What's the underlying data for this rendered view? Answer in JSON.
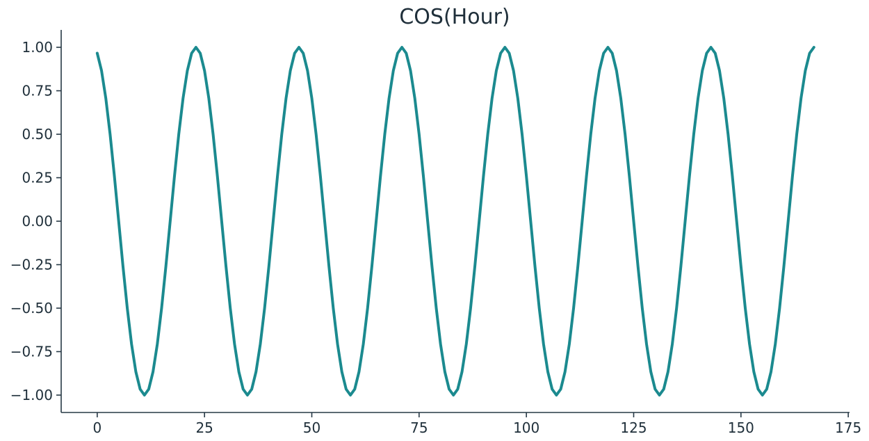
{
  "chart_data": {
    "type": "line",
    "title": "COS(Hour)",
    "xlabel": "",
    "ylabel": "",
    "xlim": [
      -8.4,
      175.3
    ],
    "ylim": [
      -1.1,
      1.1
    ],
    "x_ticks": [
      0,
      25,
      50,
      75,
      100,
      125,
      150,
      175
    ],
    "y_ticks": [
      1.0,
      0.75,
      0.5,
      0.25,
      0.0,
      -0.25,
      -0.5,
      -0.75,
      -1.0
    ],
    "x_tick_labels": [
      "0",
      "25",
      "50",
      "75",
      "100",
      "125",
      "150",
      "175"
    ],
    "y_tick_labels": [
      "1.00",
      "0.75",
      "0.50",
      "0.25",
      "0.00",
      "−0.25",
      "−0.50",
      "−0.75",
      "−1.00"
    ],
    "grid": false,
    "legend": "none",
    "series": [
      {
        "color": "#1b8a8f",
        "x": [
          0,
          1,
          2,
          3,
          4,
          5,
          6,
          7,
          8,
          9,
          10,
          11,
          12,
          13,
          14,
          15,
          16,
          17,
          18,
          19,
          20,
          21,
          22,
          23,
          24,
          25,
          26,
          27,
          28,
          29,
          30,
          31,
          32,
          33,
          34,
          35,
          36,
          37,
          38,
          39,
          40,
          41,
          42,
          43,
          44,
          45,
          46,
          47,
          48,
          49,
          50,
          51,
          52,
          53,
          54,
          55,
          56,
          57,
          58,
          59,
          60,
          61,
          62,
          63,
          64,
          65,
          66,
          67,
          68,
          69,
          70,
          71,
          72,
          73,
          74,
          75,
          76,
          77,
          78,
          79,
          80,
          81,
          82,
          83,
          84,
          85,
          86,
          87,
          88,
          89,
          90,
          91,
          92,
          93,
          94,
          95,
          96,
          97,
          98,
          99,
          100,
          101,
          102,
          103,
          104,
          105,
          106,
          107,
          108,
          109,
          110,
          111,
          112,
          113,
          114,
          115,
          116,
          117,
          118,
          119,
          120,
          121,
          122,
          123,
          124,
          125,
          126,
          127,
          128,
          129,
          130,
          131,
          132,
          133,
          134,
          135,
          136,
          137,
          138,
          139,
          140,
          141,
          142,
          143,
          144,
          145,
          146,
          147,
          148,
          149,
          150,
          151,
          152,
          153,
          154,
          155,
          156,
          157,
          158,
          159,
          160,
          161,
          162,
          163,
          164,
          165,
          166,
          167
        ],
        "y": [
          0.966,
          0.866,
          0.707,
          0.5,
          0.259,
          0.0,
          -0.259,
          -0.5,
          -0.707,
          -0.866,
          -0.966,
          -1.0,
          -0.966,
          -0.866,
          -0.707,
          -0.5,
          -0.259,
          0.0,
          0.259,
          0.5,
          0.707,
          0.866,
          0.966,
          1.0,
          0.966,
          0.866,
          0.707,
          0.5,
          0.259,
          0.0,
          -0.259,
          -0.5,
          -0.707,
          -0.866,
          -0.966,
          -1.0,
          -0.966,
          -0.866,
          -0.707,
          -0.5,
          -0.259,
          0.0,
          0.259,
          0.5,
          0.707,
          0.866,
          0.966,
          1.0,
          0.966,
          0.866,
          0.707,
          0.5,
          0.259,
          0.0,
          -0.259,
          -0.5,
          -0.707,
          -0.866,
          -0.966,
          -1.0,
          -0.966,
          -0.866,
          -0.707,
          -0.5,
          -0.259,
          0.0,
          0.259,
          0.5,
          0.707,
          0.866,
          0.966,
          1.0,
          0.966,
          0.866,
          0.707,
          0.5,
          0.259,
          0.0,
          -0.259,
          -0.5,
          -0.707,
          -0.866,
          -0.966,
          -1.0,
          -0.966,
          -0.866,
          -0.707,
          -0.5,
          -0.259,
          0.0,
          0.259,
          0.5,
          0.707,
          0.866,
          0.966,
          1.0,
          0.966,
          0.866,
          0.707,
          0.5,
          0.259,
          0.0,
          -0.259,
          -0.5,
          -0.707,
          -0.866,
          -0.966,
          -1.0,
          -0.966,
          -0.866,
          -0.707,
          -0.5,
          -0.259,
          0.0,
          0.259,
          0.5,
          0.707,
          0.866,
          0.966,
          1.0,
          0.966,
          0.866,
          0.707,
          0.5,
          0.259,
          0.0,
          -0.259,
          -0.5,
          -0.707,
          -0.866,
          -0.966,
          -1.0,
          -0.966,
          -0.866,
          -0.707,
          -0.5,
          -0.259,
          0.0,
          0.259,
          0.5,
          0.707,
          0.866,
          0.966,
          1.0,
          0.966,
          0.866,
          0.707,
          0.5,
          0.259,
          0.0,
          -0.259,
          -0.5,
          -0.707,
          -0.866,
          -0.966,
          -1.0,
          -0.966,
          -0.866,
          -0.707,
          -0.5,
          -0.259,
          0.0,
          0.259,
          0.5,
          0.707,
          0.866,
          0.966,
          1.0
        ]
      }
    ]
  }
}
